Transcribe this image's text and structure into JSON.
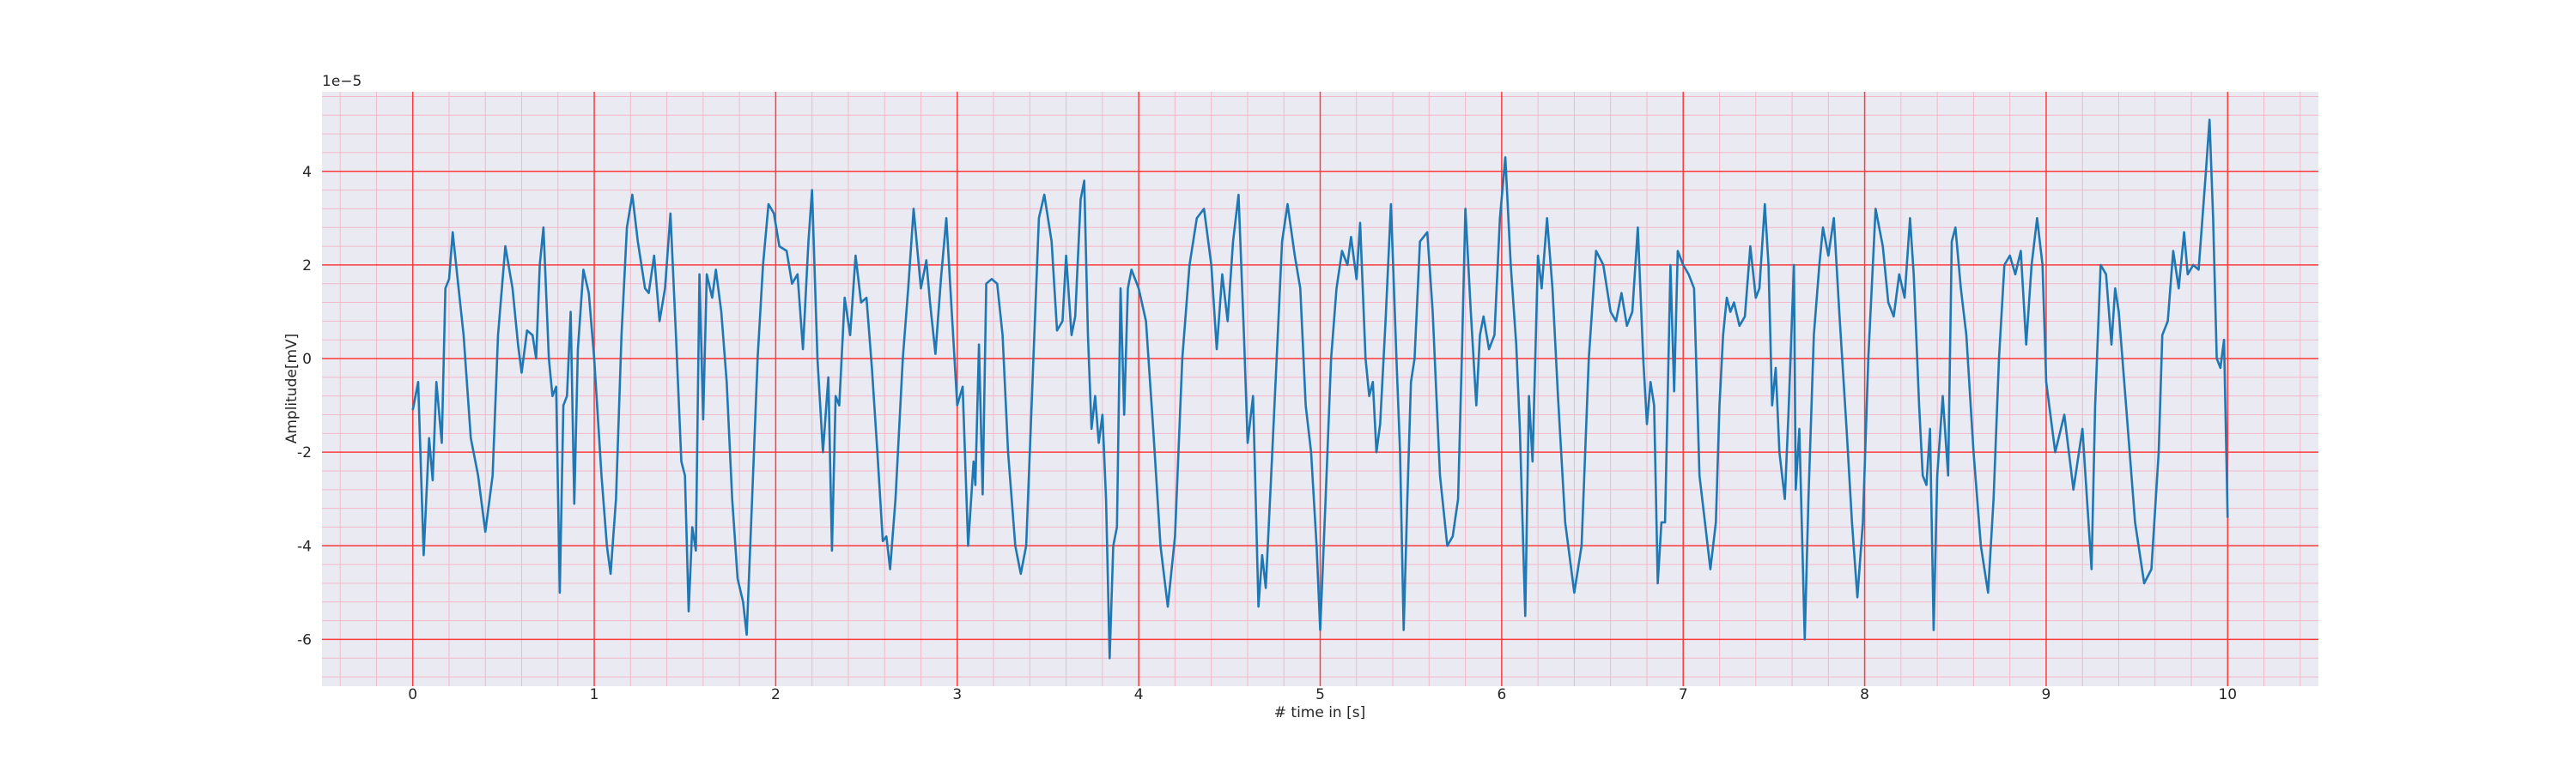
{
  "chart_data": {
    "type": "line",
    "xlabel": "# time in [s]",
    "ylabel": "Amplitude[mV]",
    "y_offset_label": "1e−5",
    "xlim": [
      -0.5,
      10.5
    ],
    "ylim": [
      -7.0,
      5.7
    ],
    "xticks": [
      0,
      1,
      2,
      3,
      4,
      5,
      6,
      7,
      8,
      9,
      10
    ],
    "yticks": [
      -6,
      -4,
      -2,
      0,
      2,
      4
    ],
    "grid": true,
    "grid_color": "#ff3b3b",
    "minor_grid_color": "#f4b8c8",
    "minor_divisions": 5,
    "background": "#eaeaf2",
    "color": "#1f77b4",
    "x": [
      0,
      0.03,
      0.06,
      0.09,
      0.11,
      0.13,
      0.16,
      0.18,
      0.2,
      0.22,
      0.25,
      0.28,
      0.32,
      0.36,
      0.4,
      0.44,
      0.47,
      0.51,
      0.55,
      0.58,
      0.6,
      0.63,
      0.66,
      0.68,
      0.7,
      0.72,
      0.75,
      0.77,
      0.79,
      0.81,
      0.83,
      0.85,
      0.87,
      0.89,
      0.91,
      0.94,
      0.97,
      1.0,
      1.04,
      1.07,
      1.09,
      1.12,
      1.15,
      1.18,
      1.21,
      1.24,
      1.28,
      1.3,
      1.33,
      1.36,
      1.39,
      1.42,
      1.45,
      1.48,
      1.5,
      1.52,
      1.54,
      1.56,
      1.58,
      1.6,
      1.62,
      1.65,
      1.67,
      1.7,
      1.73,
      1.76,
      1.79,
      1.82,
      1.84,
      1.87,
      1.9,
      1.93,
      1.96,
      1.99,
      2.02,
      2.06,
      2.09,
      2.12,
      2.15,
      2.18,
      2.2,
      2.23,
      2.26,
      2.29,
      2.31,
      2.33,
      2.35,
      2.38,
      2.41,
      2.44,
      2.47,
      2.5,
      2.53,
      2.56,
      2.59,
      2.61,
      2.63,
      2.66,
      2.7,
      2.73,
      2.76,
      2.8,
      2.83,
      2.85,
      2.88,
      2.91,
      2.94,
      2.97,
      3.0,
      3.03,
      3.06,
      3.09,
      3.1,
      3.12,
      3.14,
      3.16,
      3.19,
      3.22,
      3.25,
      3.28,
      3.32,
      3.35,
      3.38,
      3.42,
      3.45,
      3.48,
      3.52,
      3.55,
      3.58,
      3.6,
      3.63,
      3.65,
      3.68,
      3.7,
      3.72,
      3.74,
      3.76,
      3.78,
      3.8,
      3.82,
      3.84,
      3.86,
      3.88,
      3.9,
      3.92,
      3.94,
      3.96,
      4.0,
      4.04,
      4.08,
      4.12,
      4.16,
      4.2,
      4.24,
      4.28,
      4.32,
      4.36,
      4.4,
      4.43,
      4.46,
      4.49,
      4.52,
      4.55,
      4.58,
      4.6,
      4.63,
      4.66,
      4.68,
      4.7,
      4.73,
      4.76,
      4.79,
      4.82,
      4.86,
      4.89,
      4.92,
      4.95,
      4.98,
      5.0,
      5.03,
      5.06,
      5.09,
      5.12,
      5.15,
      5.17,
      5.2,
      5.22,
      5.25,
      5.27,
      5.29,
      5.31,
      5.33,
      5.36,
      5.39,
      5.42,
      5.44,
      5.46,
      5.48,
      5.5,
      5.52,
      5.55,
      5.59,
      5.62,
      5.66,
      5.7,
      5.73,
      5.76,
      5.78,
      5.8,
      5.83,
      5.86,
      5.88,
      5.9,
      5.93,
      5.96,
      5.99,
      6.02,
      6.05,
      6.08,
      6.1,
      6.13,
      6.15,
      6.17,
      6.2,
      6.22,
      6.25,
      6.28,
      6.31,
      6.35,
      6.4,
      6.44,
      6.48,
      6.52,
      6.56,
      6.6,
      6.63,
      6.66,
      6.69,
      6.72,
      6.75,
      6.78,
      6.8,
      6.82,
      6.84,
      6.86,
      6.88,
      6.9,
      6.93,
      6.95,
      6.97,
      7.0,
      7.03,
      7.06,
      7.09,
      7.12,
      7.15,
      7.18,
      7.2,
      7.22,
      7.24,
      7.26,
      7.28,
      7.31,
      7.34,
      7.37,
      7.4,
      7.42,
      7.45,
      7.47,
      7.49,
      7.51,
      7.53,
      7.56,
      7.58,
      7.61,
      7.62,
      7.64,
      7.67,
      7.69,
      7.72,
      7.75,
      7.77,
      7.8,
      7.83,
      7.86,
      7.9,
      7.93,
      7.96,
      7.99,
      8.02,
      8.06,
      8.1,
      8.13,
      8.16,
      8.19,
      8.22,
      8.25,
      8.27,
      8.3,
      8.32,
      8.34,
      8.36,
      8.38,
      8.4,
      8.43,
      8.46,
      8.48,
      8.5,
      8.53,
      8.56,
      8.6,
      8.64,
      8.68,
      8.71,
      8.74,
      8.77,
      8.8,
      8.83,
      8.86,
      8.89,
      8.92,
      8.95,
      8.98,
      9.0,
      9.05,
      9.1,
      9.15,
      9.2,
      9.25,
      9.27,
      9.3,
      9.33,
      9.36,
      9.38,
      9.4,
      9.44,
      9.49,
      9.54,
      9.58,
      9.62,
      9.64,
      9.67,
      9.7,
      9.73,
      9.76,
      9.78,
      9.81,
      9.84,
      9.88,
      9.9,
      9.92,
      9.94,
      9.96,
      9.98,
      10.0
    ],
    "values": [
      -1.1,
      -0.5,
      -4.2,
      -1.7,
      -2.6,
      -0.5,
      -1.8,
      1.5,
      1.7,
      2.7,
      1.6,
      0.5,
      -1.7,
      -2.5,
      -3.7,
      -2.5,
      0.5,
      2.4,
      1.5,
      0.3,
      -0.3,
      0.6,
      0.5,
      0,
      2,
      2.8,
      0,
      -0.8,
      -0.6,
      -5.0,
      -1.0,
      -0.8,
      1.0,
      -3.1,
      0.2,
      1.9,
      1.4,
      0,
      -2.5,
      -4.0,
      -4.6,
      -3.0,
      0.5,
      2.8,
      3.5,
      2.5,
      1.5,
      1.4,
      2.2,
      0.8,
      1.5,
      3.1,
      0.5,
      -2.2,
      -2.5,
      -5.4,
      -3.6,
      -4.1,
      1.8,
      -1.3,
      1.8,
      1.3,
      1.9,
      1.0,
      -0.5,
      -3,
      -4.7,
      -5.2,
      -5.9,
      -3,
      0,
      2,
      3.3,
      3.1,
      2.4,
      2.3,
      1.6,
      1.8,
      0.2,
      2.5,
      3.6,
      0,
      -2,
      -0.4,
      -4.1,
      -0.8,
      -1.0,
      1.3,
      0.5,
      2.2,
      1.2,
      1.3,
      -0.2,
      -2,
      -3.9,
      -3.8,
      -4.5,
      -3,
      0,
      1.5,
      3.2,
      1.5,
      2.1,
      1.2,
      0.1,
      1.7,
      3,
      1,
      -1,
      -0.6,
      -4,
      -2.2,
      -2.7,
      0.3,
      -2.9,
      1.6,
      1.7,
      1.6,
      0.5,
      -2,
      -4,
      -4.6,
      -4,
      0,
      3,
      3.5,
      2.5,
      0.6,
      0.8,
      2.2,
      0.5,
      0.9,
      3.4,
      3.8,
      0.5,
      -1.5,
      -0.8,
      -1.8,
      -1.2,
      -3,
      -6.4,
      -4,
      -3.6,
      1.5,
      -1.2,
      1.5,
      1.9,
      1.5,
      0.8,
      -1.5,
      -4,
      -5.3,
      -3.8,
      0,
      2,
      3,
      3.2,
      2,
      0.2,
      1.8,
      0.8,
      2.5,
      3.5,
      0.5,
      -1.8,
      -0.8,
      -5.3,
      -4.2,
      -4.9,
      -2.5,
      0,
      2.5,
      3.3,
      2.2,
      1.5,
      -1.0,
      -2.0,
      -4,
      -5.8,
      -3,
      0,
      1.5,
      2.3,
      2,
      2.6,
      1.7,
      2.9,
      0,
      -0.8,
      -0.5,
      -2,
      -1.4,
      0.8,
      3.3,
      0,
      -2,
      -5.8,
      -3,
      -0.5,
      0,
      2.5,
      2.7,
      1,
      -2.5,
      -4,
      -3.8,
      -3.0,
      0,
      3.2,
      1,
      -1,
      0.5,
      0.9,
      0.2,
      0.5,
      3,
      4.3,
      2,
      0.3,
      -1.5,
      -5.5,
      -0.8,
      -2.2,
      2.2,
      1.5,
      3,
      1.5,
      -0.8,
      -3.5,
      -5,
      -4,
      0,
      2.3,
      2,
      1,
      0.8,
      1.4,
      0.7,
      1,
      2.8,
      0,
      -1.4,
      -0.5,
      -1,
      -4.8,
      -3.5,
      -3.5,
      2,
      -0.7,
      2.3,
      2,
      1.8,
      1.5,
      -2.5,
      -3.5,
      -4.5,
      -3.5,
      -1,
      0.5,
      1.3,
      1,
      1.2,
      0.7,
      0.9,
      2.4,
      1.3,
      1.5,
      3.3,
      2,
      -1,
      -0.2,
      -2,
      -3,
      -1.2,
      2,
      -2.8,
      -1.5,
      -6.0,
      -3,
      0.5,
      2,
      2.8,
      2.2,
      3,
      1,
      -1.5,
      -3.5,
      -5.1,
      -3.5,
      0,
      3.2,
      2.4,
      1.2,
      0.9,
      1.8,
      1.3,
      3,
      1.8,
      -1,
      -2.5,
      -2.7,
      -1.5,
      -5.8,
      -2.5,
      -0.8,
      -2.5,
      2.5,
      2.8,
      1.5,
      0.5,
      -2,
      -4,
      -5,
      -3,
      0,
      2,
      2.2,
      1.8,
      2.3,
      0.3,
      2,
      3,
      2,
      -0.5,
      -2,
      -1.2,
      -2.8,
      -1.5,
      -4.5,
      -1,
      2,
      1.8,
      0.3,
      1.5,
      1,
      -1,
      -3.5,
      -4.8,
      -4.5,
      -2,
      0.5,
      0.8,
      2.3,
      1.5,
      2.7,
      1.8,
      2,
      1.9,
      4,
      5.1,
      3,
      0,
      -0.2,
      0.4,
      -3.4
    ]
  }
}
